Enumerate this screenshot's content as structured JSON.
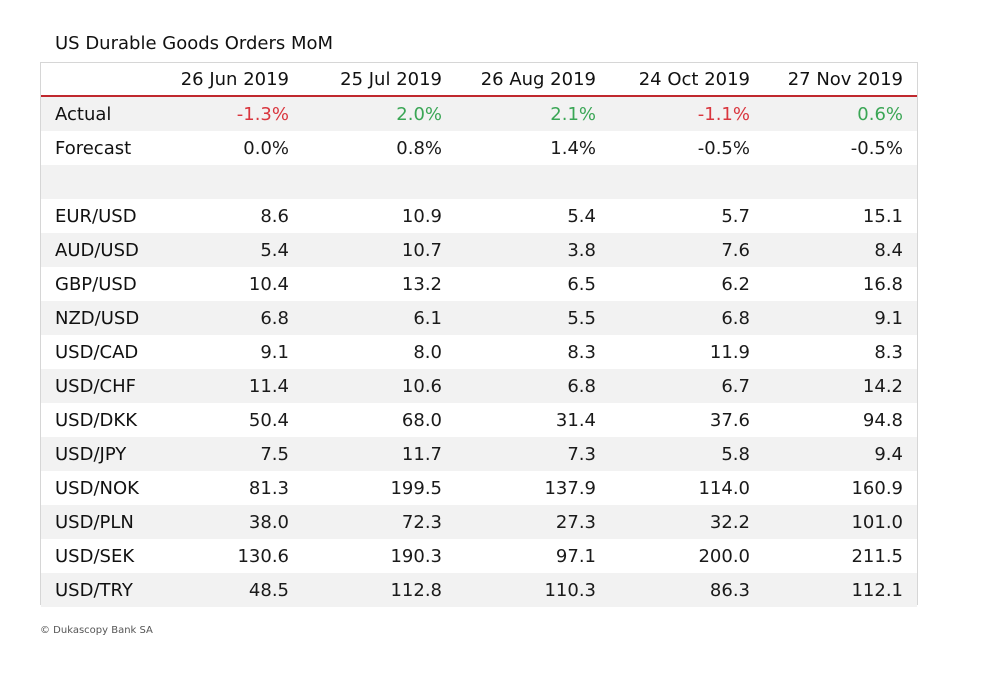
{
  "chart_data": {
    "type": "table",
    "title": "US Durable Goods Orders MoM",
    "columns": [
      "26 Jun 2019",
      "25 Jul 2019",
      "26 Aug 2019",
      "24 Oct 2019",
      "27 Nov 2019"
    ],
    "rows": [
      {
        "label": "Actual",
        "values": [
          "-1.3%",
          "2.0%",
          "2.1%",
          "-1.1%",
          "0.6%"
        ],
        "kind": "signed"
      },
      {
        "label": "Forecast",
        "values": [
          "0.0%",
          "0.8%",
          "1.4%",
          "-0.5%",
          "-0.5%"
        ],
        "kind": "plain"
      },
      {
        "label": "",
        "values": [
          "",
          "",
          "",
          "",
          ""
        ],
        "kind": "spacer"
      },
      {
        "label": "EUR/USD",
        "values": [
          "8.6",
          "10.9",
          "5.4",
          "5.7",
          "15.1"
        ],
        "kind": "plain"
      },
      {
        "label": "AUD/USD",
        "values": [
          "5.4",
          "10.7",
          "3.8",
          "7.6",
          "8.4"
        ],
        "kind": "plain"
      },
      {
        "label": "GBP/USD",
        "values": [
          "10.4",
          "13.2",
          "6.5",
          "6.2",
          "16.8"
        ],
        "kind": "plain"
      },
      {
        "label": "NZD/USD",
        "values": [
          "6.8",
          "6.1",
          "5.5",
          "6.8",
          "9.1"
        ],
        "kind": "plain"
      },
      {
        "label": "USD/CAD",
        "values": [
          "9.1",
          "8.0",
          "8.3",
          "11.9",
          "8.3"
        ],
        "kind": "plain"
      },
      {
        "label": "USD/CHF",
        "values": [
          "11.4",
          "10.6",
          "6.8",
          "6.7",
          "14.2"
        ],
        "kind": "plain"
      },
      {
        "label": "USD/DKK",
        "values": [
          "50.4",
          "68.0",
          "31.4",
          "37.6",
          "94.8"
        ],
        "kind": "plain"
      },
      {
        "label": "USD/JPY",
        "values": [
          "7.5",
          "11.7",
          "7.3",
          "5.8",
          "9.4"
        ],
        "kind": "plain"
      },
      {
        "label": "USD/NOK",
        "values": [
          "81.3",
          "199.5",
          "137.9",
          "114.0",
          "160.9"
        ],
        "kind": "plain"
      },
      {
        "label": "USD/PLN",
        "values": [
          "38.0",
          "72.3",
          "27.3",
          "32.2",
          "101.0"
        ],
        "kind": "plain"
      },
      {
        "label": "USD/SEK",
        "values": [
          "130.6",
          "190.3",
          "97.1",
          "200.0",
          "211.5"
        ],
        "kind": "plain"
      },
      {
        "label": "USD/TRY",
        "values": [
          "48.5",
          "112.8",
          "110.3",
          "86.3",
          "112.1"
        ],
        "kind": "plain"
      }
    ],
    "credit": "© Dukascopy Bank SA"
  },
  "colors": {
    "negative": "#d9363e",
    "positive": "#3aa655",
    "header_rule": "#c0282e",
    "stripe": "#f2f2f2"
  }
}
